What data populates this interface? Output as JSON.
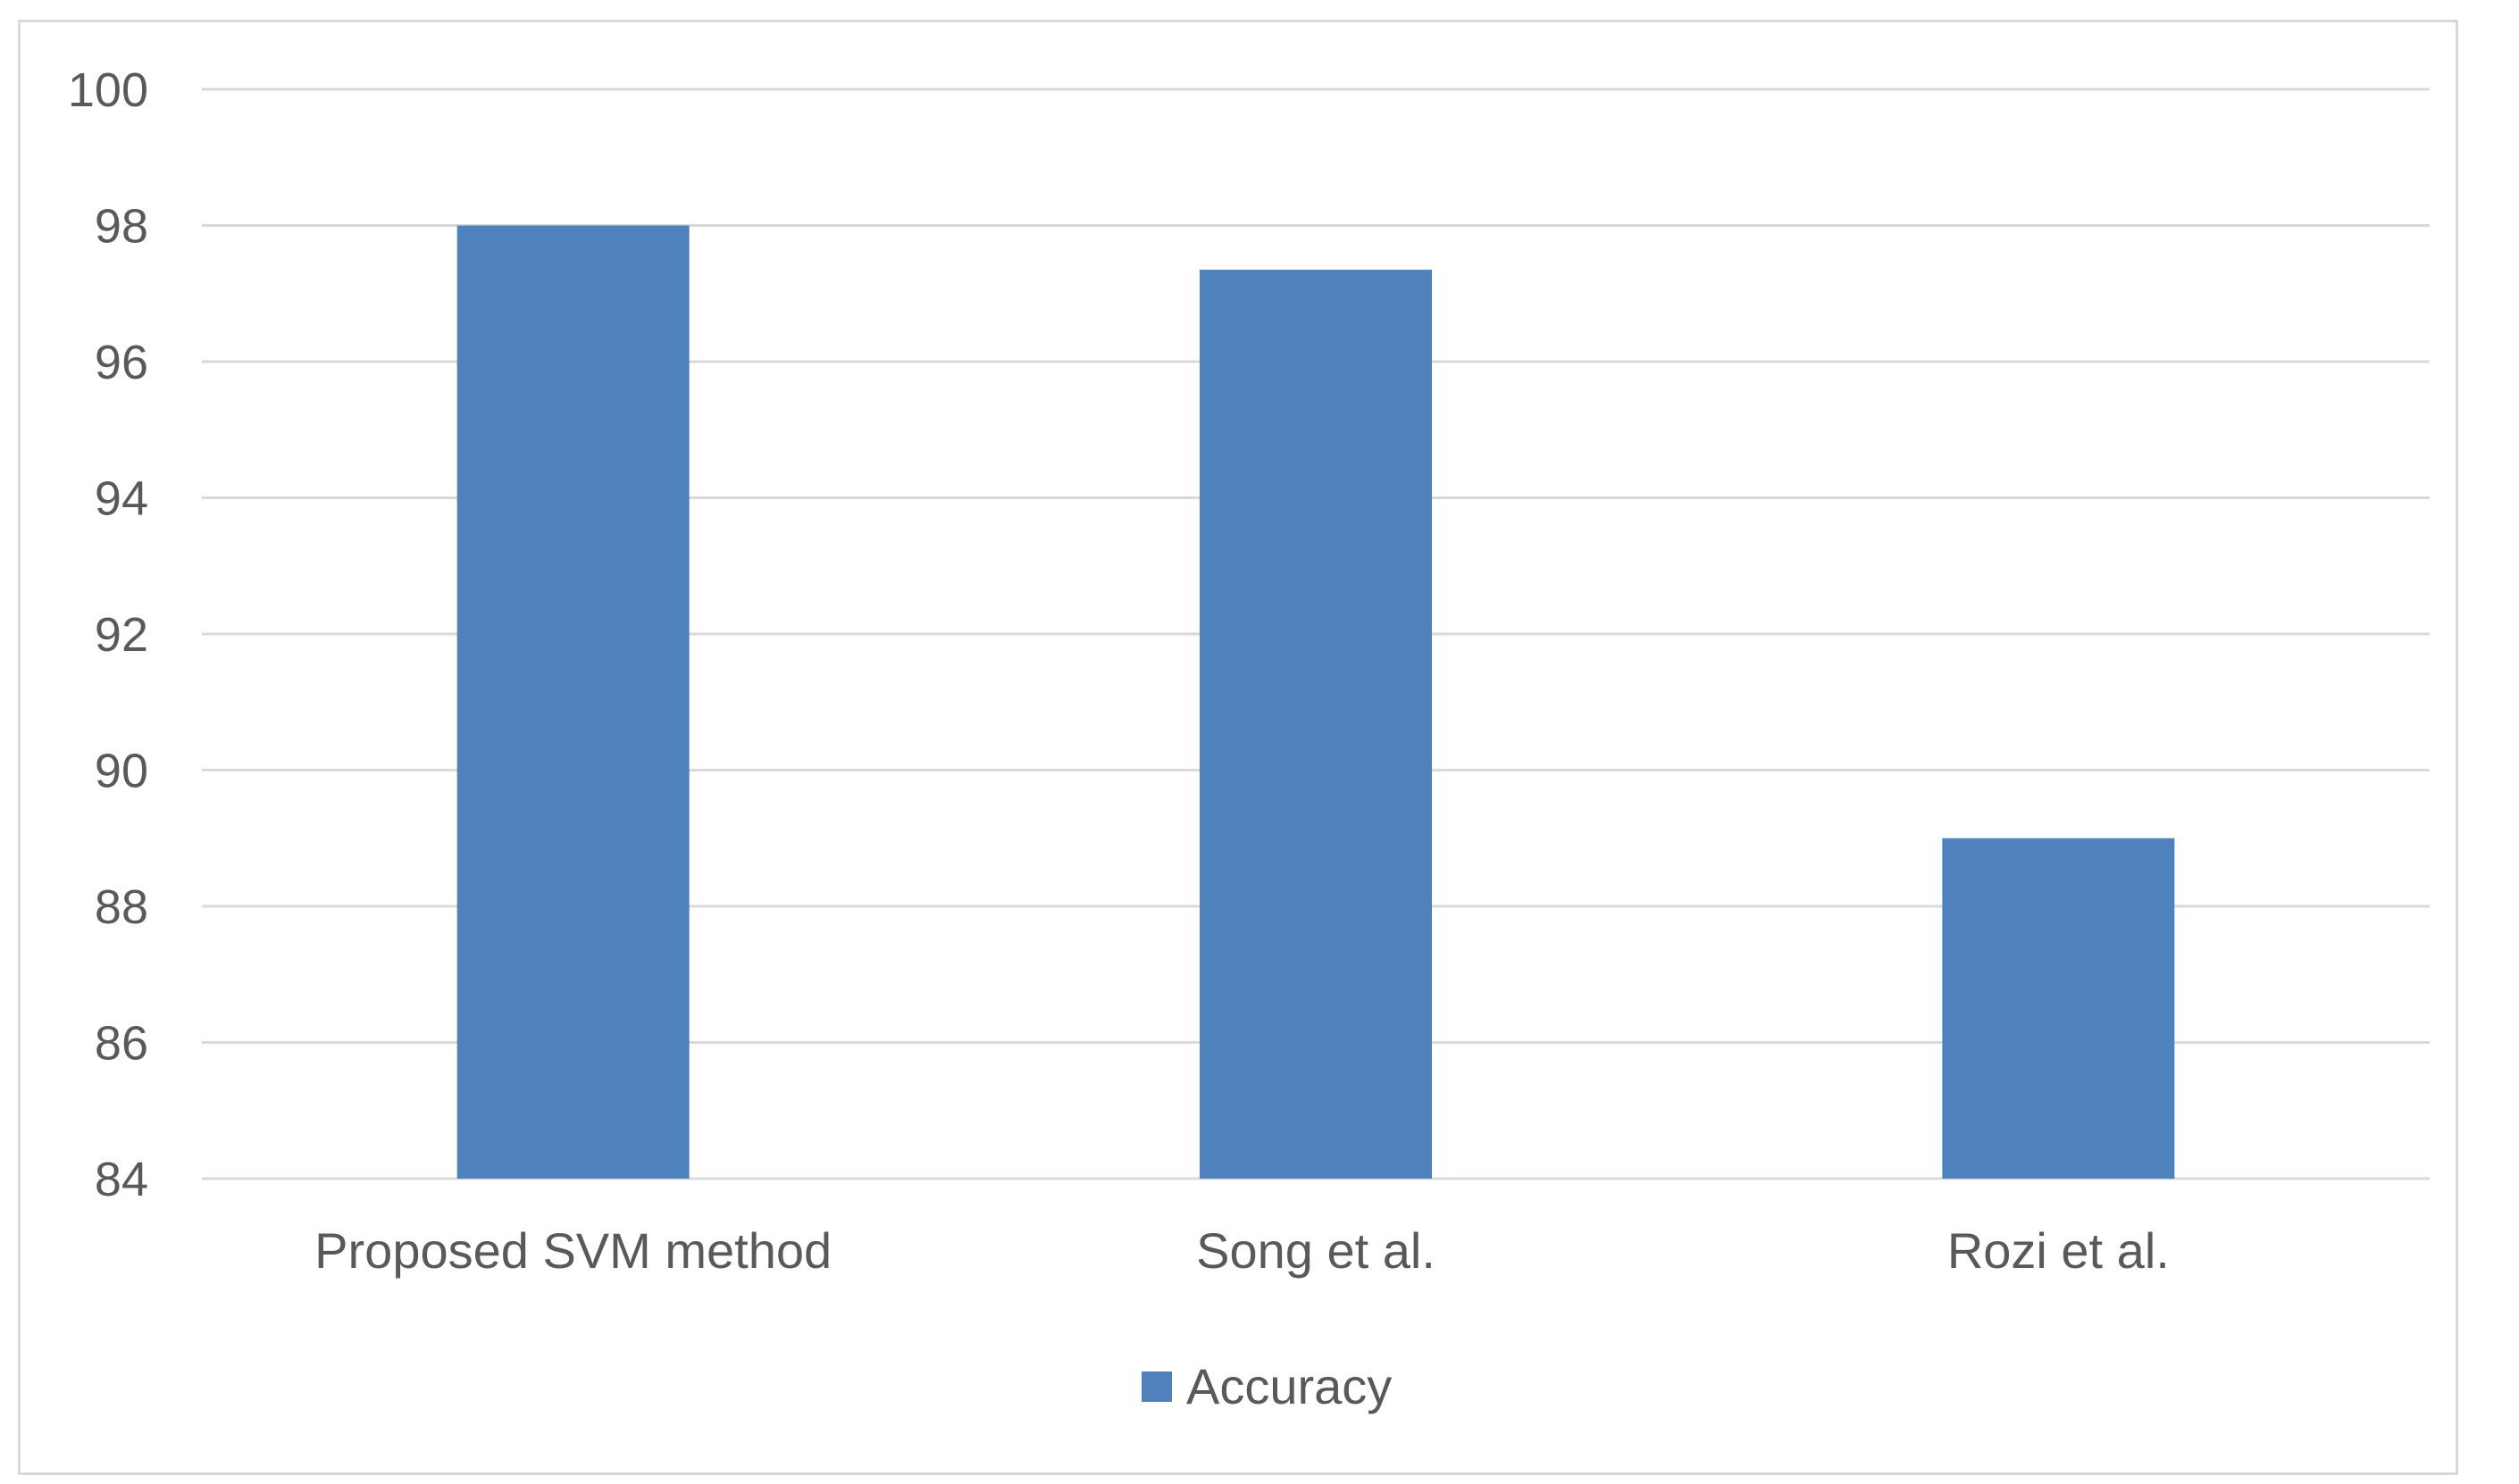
{
  "chart_data": {
    "type": "bar",
    "title": "",
    "xlabel": "",
    "ylabel": "",
    "categories": [
      "Proposed SVM method",
      "Song et al.",
      "Rozi et al."
    ],
    "series": [
      {
        "name": "Accuracy",
        "color": "#4f81bd",
        "values": [
          98,
          97.35,
          89
        ]
      }
    ],
    "ylim": [
      84,
      100
    ],
    "yticks": [
      84,
      86,
      88,
      90,
      92,
      94,
      96,
      98,
      100
    ],
    "grid": true,
    "legend": "bottom-center"
  }
}
